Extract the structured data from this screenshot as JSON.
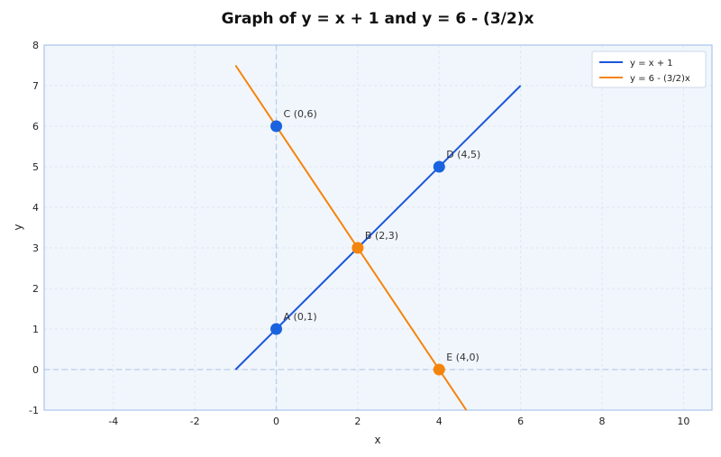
{
  "chart_data": {
    "type": "line",
    "title": "Graph of y = x + 1 and y = 6 - (3/2)x",
    "xlabel": "x",
    "ylabel": "y",
    "xlim": [
      -5.7,
      10.7
    ],
    "ylim": [
      -1,
      8
    ],
    "xticks": [
      -4,
      -2,
      0,
      2,
      4,
      6,
      8,
      10
    ],
    "yticks": [
      -1,
      0,
      1,
      2,
      3,
      4,
      5,
      6,
      7,
      8
    ],
    "grid": true,
    "legend_position": "top-right",
    "series": [
      {
        "name": "y = x + 1",
        "color": "#1a56db",
        "x": [
          -1,
          6
        ],
        "y": [
          0,
          7
        ]
      },
      {
        "name": "y = 6 - (3/2)x",
        "color": "#f5840c",
        "x": [
          -1,
          4.6667
        ],
        "y": [
          7.5,
          -1
        ]
      }
    ],
    "points": [
      {
        "label": "A (0,1)",
        "x": 0,
        "y": 1,
        "color": "#1a63e0"
      },
      {
        "label": "B (2,3)",
        "x": 2,
        "y": 3,
        "color": "#f5840c"
      },
      {
        "label": "C (0,6)",
        "x": 0,
        "y": 6,
        "color": "#1a63e0"
      },
      {
        "label": "D (4,5)",
        "x": 4,
        "y": 5,
        "color": "#1a63e0"
      },
      {
        "label": "E (4,0)",
        "x": 4,
        "y": 0,
        "color": "#f5840c"
      }
    ]
  }
}
